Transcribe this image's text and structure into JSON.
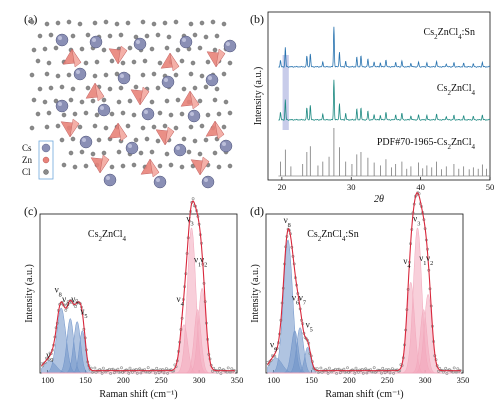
{
  "panels": {
    "a": {
      "label": "(a)",
      "legend": [
        {
          "text": "Cs",
          "color": "#8a8fb5"
        },
        {
          "text": "Zn",
          "color": "#e8837a"
        },
        {
          "text": "Cl",
          "color": "#8a8a8a"
        }
      ]
    },
    "b": {
      "label": "(b)"
    },
    "c": {
      "label": "(c)"
    },
    "d": {
      "label": "(d)"
    }
  },
  "colors": {
    "sn_xrd": "#2a74b0",
    "pure_xrd": "#1e8a82",
    "pdf_ref": "#7a7a7a",
    "highlight": "#9aa3d8",
    "fit_line": "#d8283c",
    "data_marker": "#8a8a8a",
    "blue_fill": "#6f93c9",
    "pink_fill": "#f2a7bb"
  },
  "chart_data": [
    {
      "id": "b",
      "type": "line",
      "xlabel": "2θ",
      "ylabel": "Intensity (a.u.)",
      "xlim": [
        18,
        50
      ],
      "xticks": [
        20,
        30,
        40,
        50
      ],
      "highlight_range": [
        20.1,
        21.0
      ],
      "series": [
        {
          "name": "Cs2ZnCl4:Sn",
          "label_main": "Cs",
          "label_sub1": "2",
          "label_mid": "ZnCl",
          "label_sub2": "4",
          "label_tail": ":Sn",
          "peaks": [
            [
              19.8,
              0.15
            ],
            [
              20.5,
              0.48
            ],
            [
              23.6,
              0.27
            ],
            [
              24.1,
              0.32
            ],
            [
              25.9,
              0.12
            ],
            [
              27.5,
              1.0
            ],
            [
              28.3,
              0.38
            ],
            [
              29.2,
              0.14
            ],
            [
              30.8,
              0.24
            ],
            [
              31.4,
              0.28
            ],
            [
              32.4,
              0.2
            ],
            [
              33.3,
              0.13
            ],
            [
              34.2,
              0.1
            ],
            [
              35.0,
              0.18
            ],
            [
              36.4,
              0.12
            ],
            [
              37.3,
              0.15
            ],
            [
              38.6,
              0.09
            ],
            [
              39.7,
              0.12
            ],
            [
              40.9,
              0.1
            ],
            [
              42.3,
              0.14
            ],
            [
              43.7,
              0.08
            ],
            [
              44.8,
              0.1
            ],
            [
              46.2,
              0.08
            ],
            [
              47.6,
              0.07
            ],
            [
              48.9,
              0.11
            ]
          ]
        },
        {
          "name": "Cs2ZnCl4",
          "label_main": "Cs",
          "label_sub1": "2",
          "label_mid": "ZnCl",
          "label_sub2": "4",
          "label_tail": "",
          "peaks": [
            [
              19.8,
              0.18
            ],
            [
              20.5,
              0.5
            ],
            [
              23.6,
              0.3
            ],
            [
              24.1,
              0.36
            ],
            [
              25.9,
              0.14
            ],
            [
              27.5,
              1.0
            ],
            [
              28.3,
              0.42
            ],
            [
              29.2,
              0.16
            ],
            [
              30.8,
              0.27
            ],
            [
              31.4,
              0.3
            ],
            [
              32.4,
              0.22
            ],
            [
              33.3,
              0.14
            ],
            [
              34.2,
              0.11
            ],
            [
              35.0,
              0.2
            ],
            [
              36.4,
              0.13
            ],
            [
              37.3,
              0.17
            ],
            [
              38.6,
              0.1
            ],
            [
              39.7,
              0.13
            ],
            [
              40.9,
              0.11
            ],
            [
              42.3,
              0.15
            ],
            [
              43.7,
              0.09
            ],
            [
              44.8,
              0.11
            ],
            [
              46.2,
              0.09
            ],
            [
              47.6,
              0.08
            ],
            [
              48.9,
              0.12
            ]
          ]
        },
        {
          "name": "PDF#70-1965-Cs2ZnCl4",
          "label_main": "PDF#70-1965-Cs",
          "label_sub1": "2",
          "label_mid": "ZnCl",
          "label_sub2": "4",
          "label_tail": "",
          "sticks": [
            [
              19.8,
              0.3
            ],
            [
              20.5,
              0.55
            ],
            [
              21.3,
              0.2
            ],
            [
              23.0,
              0.25
            ],
            [
              23.6,
              0.5
            ],
            [
              24.1,
              0.62
            ],
            [
              25.2,
              0.22
            ],
            [
              25.9,
              0.3
            ],
            [
              26.8,
              0.4
            ],
            [
              27.5,
              1.0
            ],
            [
              28.3,
              0.6
            ],
            [
              29.2,
              0.3
            ],
            [
              30.1,
              0.25
            ],
            [
              30.8,
              0.45
            ],
            [
              31.4,
              0.5
            ],
            [
              32.4,
              0.38
            ],
            [
              33.3,
              0.28
            ],
            [
              34.2,
              0.22
            ],
            [
              35.0,
              0.35
            ],
            [
              35.8,
              0.18
            ],
            [
              36.4,
              0.25
            ],
            [
              37.3,
              0.3
            ],
            [
              38.0,
              0.15
            ],
            [
              38.6,
              0.2
            ],
            [
              39.7,
              0.28
            ],
            [
              40.3,
              0.16
            ],
            [
              40.9,
              0.22
            ],
            [
              41.6,
              0.18
            ],
            [
              42.3,
              0.3
            ],
            [
              43.0,
              0.14
            ],
            [
              43.7,
              0.2
            ],
            [
              44.8,
              0.25
            ],
            [
              45.5,
              0.15
            ],
            [
              46.2,
              0.2
            ],
            [
              47.0,
              0.14
            ],
            [
              47.6,
              0.18
            ],
            [
              48.3,
              0.15
            ],
            [
              48.9,
              0.24
            ],
            [
              49.5,
              0.15
            ]
          ]
        }
      ]
    },
    {
      "id": "c",
      "type": "area",
      "xlabel": "Raman shift (cm⁻¹)",
      "ylabel": "Intensity (a.u.)",
      "xlim": [
        90,
        350
      ],
      "xticks": [
        100,
        150,
        200,
        250,
        300,
        350
      ],
      "ylim": [
        0,
        1.05
      ],
      "title_main": "Cs",
      "title_sub1": "2",
      "title_mid": "ZnCl",
      "title_sub2": "4",
      "title_tail": "",
      "components": [
        {
          "name": "ν9",
          "center": 103,
          "amp": 0.08,
          "width": 8,
          "fill": "blue"
        },
        {
          "name": "ν8",
          "center": 118,
          "amp": 0.43,
          "width": 6,
          "fill": "blue"
        },
        {
          "name": "ν6",
          "center": 130,
          "amp": 0.36,
          "width": 4.5,
          "fill": "blue"
        },
        {
          "name": "ν7",
          "center": 139,
          "amp": 0.34,
          "width": 4.5,
          "fill": "blue"
        },
        {
          "name": "ν5",
          "center": 146,
          "amp": 0.28,
          "width": 4,
          "fill": "blue"
        },
        {
          "name": "ν4",
          "center": 280,
          "amp": 0.32,
          "width": 5,
          "fill": "pink"
        },
        {
          "name": "ν3",
          "center": 290,
          "amp": 0.96,
          "width": 5.5,
          "fill": "pink"
        },
        {
          "name": "ν1",
          "center": 298,
          "amp": 0.42,
          "width": 4.5,
          "fill": "pink"
        },
        {
          "name": "ν2",
          "center": 304,
          "amp": 0.56,
          "width": 5,
          "fill": "pink"
        }
      ],
      "peak_labels": [
        {
          "base": "ν",
          "sub": "9",
          "x": 103,
          "y": 0.1
        },
        {
          "base": "ν",
          "sub": "8",
          "x": 114,
          "y": 0.53
        },
        {
          "base": "ν",
          "sub": "6",
          "x": 124,
          "y": 0.47
        },
        {
          "base": "ν",
          "sub": "7",
          "x": 136,
          "y": 0.47
        },
        {
          "base": "ν",
          "sub": "5",
          "x": 148,
          "y": 0.39
        },
        {
          "base": "ν",
          "sub": "4",
          "x": 275,
          "y": 0.47
        },
        {
          "base": "ν",
          "sub": "3",
          "x": 288,
          "y": 1.0
        },
        {
          "base": "ν",
          "sub": "1",
          "x": 298,
          "y": 0.73
        },
        {
          "base": "ν",
          "sub": "2",
          "x": 306,
          "y": 0.73
        }
      ]
    },
    {
      "id": "d",
      "type": "area",
      "xlabel": "Raman shift (cm⁻¹)",
      "ylabel": "Intensity (a.u.)",
      "xlim": [
        90,
        350
      ],
      "xticks": [
        100,
        150,
        200,
        250,
        300,
        350
      ],
      "ylim": [
        0,
        1.05
      ],
      "title_main": "Cs",
      "title_sub1": "2",
      "title_mid": "ZnCl",
      "title_sub2": "4",
      "title_tail": ":Sn",
      "components": [
        {
          "name": "ν9",
          "center": 103,
          "amp": 0.1,
          "width": 8,
          "fill": "blue"
        },
        {
          "name": "ν8",
          "center": 119,
          "amp": 0.88,
          "width": 6,
          "fill": "blue"
        },
        {
          "name": "ν6",
          "center": 128,
          "amp": 0.28,
          "width": 4.5,
          "fill": "blue"
        },
        {
          "name": "ν7",
          "center": 135,
          "amp": 0.3,
          "width": 4.5,
          "fill": "blue"
        },
        {
          "name": "ν5",
          "center": 145,
          "amp": 0.17,
          "width": 4,
          "fill": "blue"
        },
        {
          "name": "ν4",
          "center": 281,
          "amp": 0.6,
          "width": 5,
          "fill": "pink"
        },
        {
          "name": "ν3",
          "center": 290,
          "amp": 0.96,
          "width": 5.5,
          "fill": "pink"
        },
        {
          "name": "ν1",
          "center": 298,
          "amp": 0.42,
          "width": 4.5,
          "fill": "pink"
        },
        {
          "name": "ν2",
          "center": 304,
          "amp": 0.52,
          "width": 5,
          "fill": "pink"
        }
      ],
      "peak_labels": [
        {
          "base": "ν",
          "sub": "9",
          "x": 100,
          "y": 0.17
        },
        {
          "base": "ν",
          "sub": "8",
          "x": 118,
          "y": 0.99
        },
        {
          "base": "ν",
          "sub": "6",
          "x": 129,
          "y": 0.48
        },
        {
          "base": "ν",
          "sub": "7",
          "x": 138,
          "y": 0.48
        },
        {
          "base": "ν",
          "sub": "5",
          "x": 147,
          "y": 0.3
        },
        {
          "base": "ν",
          "sub": "4",
          "x": 276,
          "y": 0.72
        },
        {
          "base": "ν",
          "sub": "3",
          "x": 289,
          "y": 1.0
        },
        {
          "base": "ν",
          "sub": "1",
          "x": 297,
          "y": 0.74
        },
        {
          "base": "ν",
          "sub": "2",
          "x": 306,
          "y": 0.74
        }
      ]
    }
  ]
}
